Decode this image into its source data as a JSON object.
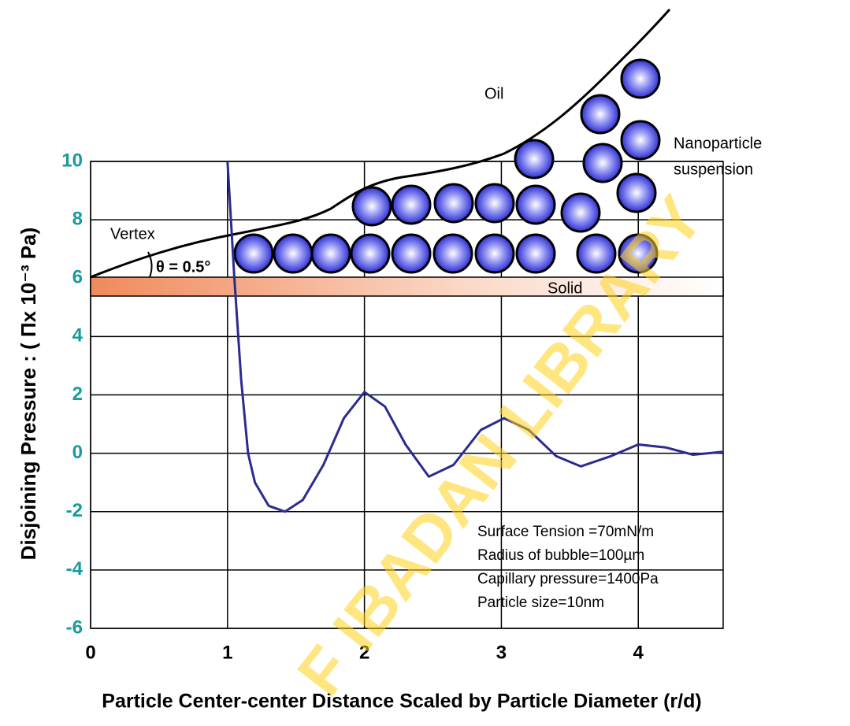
{
  "chart_data": {
    "type": "line",
    "x_label": "Particle Center-center Distance Scaled by Particle Diameter (r/d)",
    "y_label": "Disjoining Pressure : ( Πx 10⁻³  Pa)",
    "x": [
      1.0,
      1.05,
      1.1,
      1.15,
      1.2,
      1.3,
      1.42,
      1.55,
      1.7,
      1.85,
      2.0,
      2.15,
      2.3,
      2.47,
      2.65,
      2.85,
      3.02,
      3.2,
      3.4,
      3.58,
      3.8,
      4.0,
      4.2,
      4.4,
      4.62
    ],
    "series": [
      {
        "color": "#2b2b8f",
        "values": [
          10,
          6,
          2.5,
          0,
          -1.0,
          -1.8,
          -2.0,
          -1.6,
          -0.4,
          1.2,
          2.1,
          1.6,
          0.3,
          -0.8,
          -0.4,
          0.8,
          1.2,
          0.8,
          -0.1,
          -0.45,
          -0.1,
          0.3,
          0.2,
          -0.05,
          0.05
        ]
      }
    ],
    "xlim": [
      0,
      4.62
    ],
    "ylim": [
      -6,
      10
    ],
    "xticks": [
      0,
      1,
      2,
      3,
      4
    ],
    "yticks": [
      -6,
      -4,
      -2,
      0,
      2,
      4,
      6,
      8,
      10
    ],
    "grid": true,
    "notes": [
      "Surface Tension =70mN/m",
      "Radius of bubble=100µm",
      "Capillary pressure=1400Pa",
      "Particle size=10nm"
    ],
    "schematic": {
      "oil": "Oil",
      "suspension": [
        "Nanoparticle",
        "suspension"
      ],
      "vertex": "Vertex",
      "angle": "θ = 0.5°",
      "solid": "Solid"
    },
    "watermark": "F IBADAN LIBRARY"
  }
}
